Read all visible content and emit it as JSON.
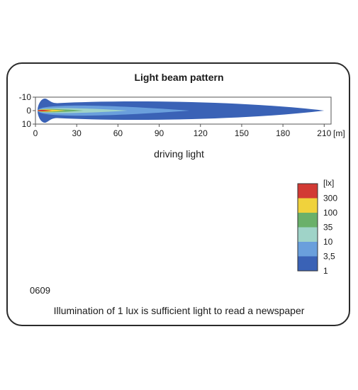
{
  "chart_data": {
    "type": "heatmap",
    "title": "Light beam pattern",
    "subtitle": "driving light",
    "x_ticks": [
      0,
      30,
      60,
      90,
      120,
      150,
      180,
      210
    ],
    "x_unit": "[m]",
    "y_ticks": [
      -10,
      0,
      10
    ],
    "xlim": [
      0,
      215
    ],
    "ylim": [
      -10,
      10
    ],
    "legend_title": "[lx]",
    "legend_placement": "right",
    "levels": [
      {
        "label": "",
        "color": "#d23a34"
      },
      {
        "label": "300",
        "color": "#f0d23c"
      },
      {
        "label": "100",
        "color": "#6ab06a"
      },
      {
        "label": "35",
        "color": "#9fd3c8"
      },
      {
        "label": "10",
        "color": "#6a9fdc"
      },
      {
        "label": "3,5",
        "color": "#3a62b6"
      },
      {
        "label": "1",
        "color": ""
      }
    ],
    "contours": [
      {
        "lux": 1,
        "reach_m": 210,
        "half_width_m": 8
      },
      {
        "lux": 3.5,
        "reach_m": 112,
        "half_width_m": 5
      },
      {
        "lux": 10,
        "reach_m": 67,
        "half_width_m": 2.5
      },
      {
        "lux": 35,
        "reach_m": 35,
        "half_width_m": 1.6
      },
      {
        "lux": 100,
        "reach_m": 22,
        "half_width_m": 1.1
      },
      {
        "lux": 300,
        "reach_m": 12,
        "half_width_m": 0.7
      }
    ]
  },
  "code": "0609",
  "note": "Illumination of 1 lux is sufficient light to read a newspaper"
}
